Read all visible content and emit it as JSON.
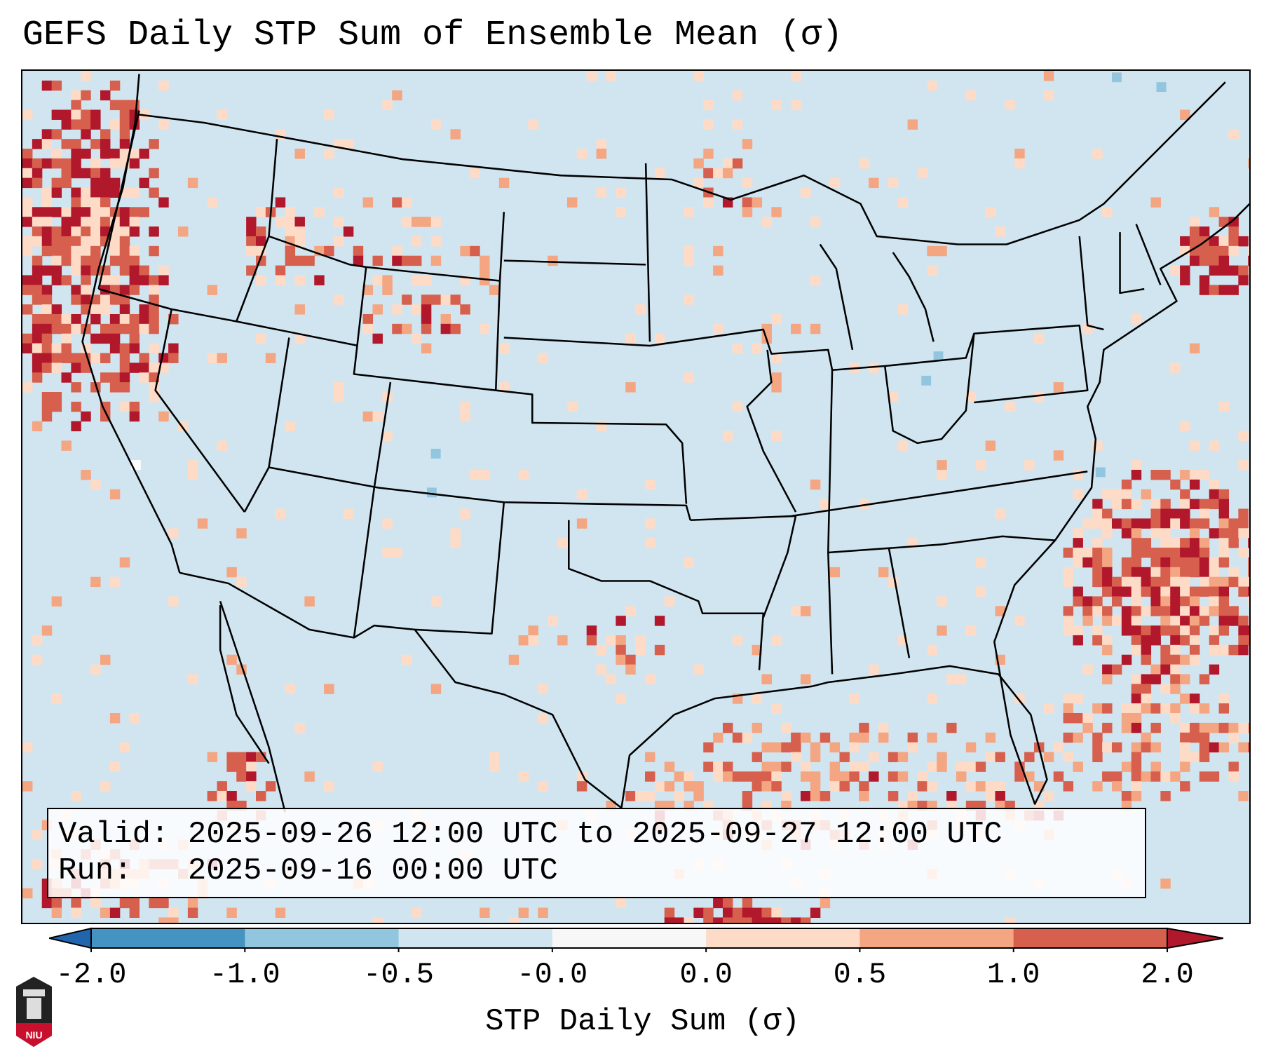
{
  "title": "GEFS Daily STP Sum of Ensemble Mean (σ)",
  "legend": {
    "valid": "Valid: 2025-09-26 12:00 UTC to 2025-09-27 12:00 UTC",
    "run": "Run:   2025-09-16 00:00 UTC"
  },
  "logo_text": "NIU",
  "chart_data": {
    "type": "heatmap",
    "title": "GEFS Daily STP Sum of Ensemble Mean (σ)",
    "region": "CONUS",
    "colorbar": {
      "label": "STP Daily Sum (σ)",
      "ticks": [
        "-2.0",
        "-1.0",
        "-0.5",
        "-0.0",
        "0.0",
        "0.5",
        "1.0",
        "2.0"
      ],
      "colors": [
        "#2166ac",
        "#4393c3",
        "#92c5de",
        "#d1e5f0",
        "#f7f7f7",
        "#fddbc7",
        "#f4a582",
        "#d6604d",
        "#b2182b"
      ],
      "extend": "both"
    },
    "notable_areas": [
      {
        "area": "Pacific Northwest coast / offshore",
        "level": "1.0 to >2.0"
      },
      {
        "area": "Idaho / western Montana",
        "level": "0.5 to >2.0"
      },
      {
        "area": "Gulf of Maine / Nova Scotia",
        "level": ">2.0"
      },
      {
        "area": "Western Atlantic off Carolinas",
        "level": "0.5 to >2.0"
      },
      {
        "area": "Gulf of Mexico",
        "level": "0.0 to 1.0"
      },
      {
        "area": "Most of CONUS interior",
        "level": "-0.5 to 0.0"
      }
    ]
  }
}
